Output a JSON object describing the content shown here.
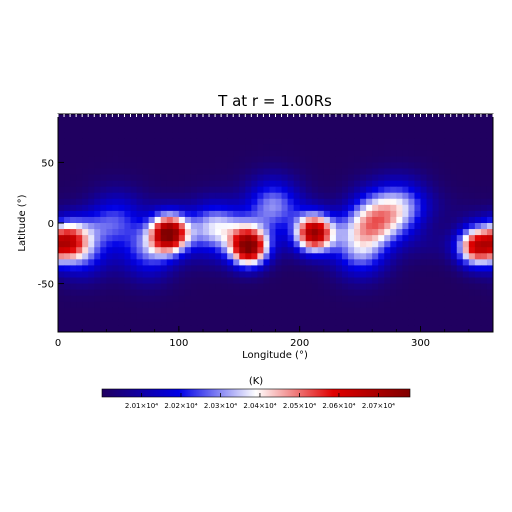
{
  "chart_data": {
    "type": "heatmap",
    "title": "T at r = 1.00Rs",
    "xlabel": "Longitude (°)",
    "ylabel": "Latitude (°)",
    "xlim": [
      0,
      360
    ],
    "ylim": [
      -90,
      90
    ],
    "x_ticks": [
      0,
      100,
      200,
      300
    ],
    "y_ticks": [
      -50,
      0,
      50
    ],
    "colorbar": {
      "label": "(K)",
      "tick_labels": [
        "2.01×10⁴",
        "2.02×10⁴",
        "2.03×10⁴",
        "2.04×10⁴",
        "2.05×10⁴",
        "2.06×10⁴",
        "2.07×10⁴"
      ],
      "tick_values": [
        20100,
        20200,
        20300,
        20400,
        20500,
        20600,
        20700
      ],
      "range": [
        20000,
        20780
      ],
      "colors": [
        "#200060",
        "#0000e6",
        "#ffffff",
        "#e00000",
        "#800000"
      ]
    },
    "background_value": 20000,
    "hot_spots": [
      {
        "lon": 158,
        "lat": -20,
        "peak": 20740
      },
      {
        "lon": 92,
        "lat": -8,
        "peak": 20700
      },
      {
        "lon": 212,
        "lat": -8,
        "peak": 20680
      },
      {
        "lon": 346,
        "lat": -20,
        "peak": 20560
      },
      {
        "lon": 8,
        "lat": -15,
        "peak": 20400
      }
    ],
    "filaments": [
      {
        "lon": 20,
        "lat": -22,
        "peak": 20260
      },
      {
        "lon": 48,
        "lat": 5,
        "peak": 20180
      },
      {
        "lon": 130,
        "lat": -5,
        "peak": 20300
      },
      {
        "lon": 178,
        "lat": 15,
        "peak": 20280
      },
      {
        "lon": 262,
        "lat": 5,
        "peak": 20320
      },
      {
        "lon": 285,
        "lat": 14,
        "peak": 20260
      },
      {
        "lon": 250,
        "lat": -22,
        "peak": 20300
      },
      {
        "lon": 75,
        "lat": -25,
        "peak": 20220
      }
    ]
  }
}
